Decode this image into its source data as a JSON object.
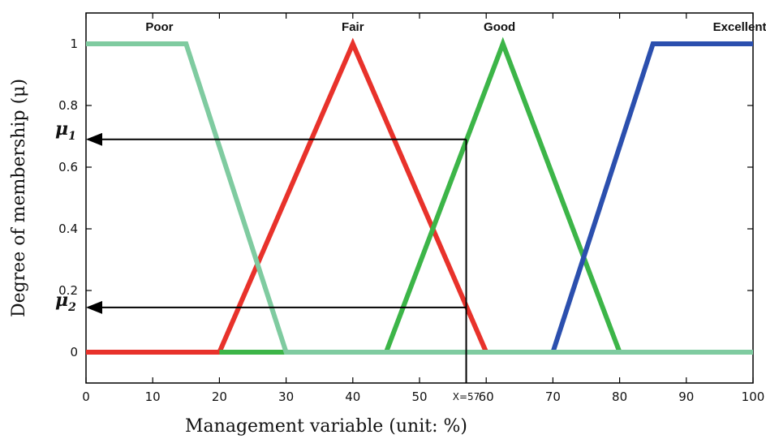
{
  "chart_data": {
    "type": "line",
    "xlabel": "Management variable (unit: %)",
    "ylabel": "Degree of membership (μ)",
    "xlim": [
      0,
      100
    ],
    "ylim": [
      -0.1,
      1.1
    ],
    "xticks": [
      "0",
      "10",
      "20",
      "30",
      "40",
      "50",
      "60",
      "70",
      "80",
      "90",
      "100"
    ],
    "yticks": [
      "0",
      "0.2",
      "0.4",
      "0.6",
      "0.8",
      "1"
    ],
    "grid": false,
    "series": [
      {
        "name": "Poor",
        "color": "#7fcba0",
        "points": [
          [
            0,
            1
          ],
          [
            15,
            1
          ],
          [
            30,
            0
          ],
          [
            100,
            0
          ]
        ]
      },
      {
        "name": "Fair",
        "color": "#e8322b",
        "points": [
          [
            0,
            0
          ],
          [
            20,
            0
          ],
          [
            40,
            1
          ],
          [
            60,
            0
          ]
        ]
      },
      {
        "name": "Good",
        "color": "#3cb548",
        "points": [
          [
            20,
            0
          ],
          [
            45,
            0
          ],
          [
            62.5,
            1
          ],
          [
            80,
            0
          ]
        ]
      },
      {
        "name": "Excellent",
        "color": "#2b4fae",
        "points": [
          [
            70,
            0
          ],
          [
            85,
            1
          ],
          [
            100,
            1
          ]
        ]
      }
    ],
    "annotations": {
      "x_marker": {
        "value": 57,
        "label": "X=57"
      },
      "mu1": {
        "symbol": "μ",
        "subscript": "1",
        "value": 0.69
      },
      "mu2": {
        "symbol": "μ",
        "subscript": "2",
        "value": 0.145
      }
    }
  }
}
